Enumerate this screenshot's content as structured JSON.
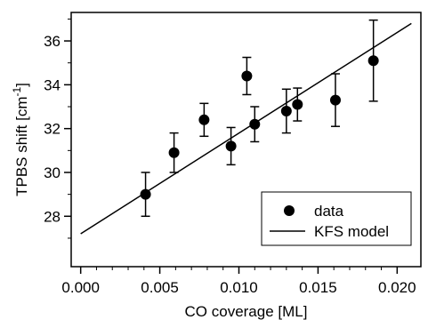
{
  "chart_data": {
    "type": "scatter",
    "title": "",
    "xlabel": "CO coverage [ML]",
    "ylabel_main": "TPBS shift [cm",
    "ylabel_sup": "-1",
    "ylabel_end": "]",
    "xlim": [
      -0.0006,
      0.0215
    ],
    "ylim": [
      25.7,
      37.3
    ],
    "x_ticks": [
      0.0,
      0.005,
      0.01,
      0.015,
      0.02
    ],
    "x_tick_labels": [
      "0.000",
      "0.005",
      "0.010",
      "0.015",
      "0.020"
    ],
    "y_ticks": [
      28,
      30,
      32,
      34,
      36
    ],
    "y_tick_labels": [
      "28",
      "30",
      "32",
      "34",
      "36"
    ],
    "grid": false,
    "legend_position": "bottom-right",
    "series": [
      {
        "name": "data",
        "kind": "scatter-with-errorbars",
        "x": [
          0.0041,
          0.0059,
          0.0078,
          0.0095,
          0.0105,
          0.011,
          0.013,
          0.0137,
          0.0161,
          0.0185
        ],
        "y": [
          29.0,
          30.9,
          32.4,
          31.2,
          34.4,
          32.2,
          32.8,
          33.1,
          33.3,
          35.1
        ],
        "yerr": [
          1.0,
          0.9,
          0.75,
          0.85,
          0.85,
          0.8,
          1.0,
          0.75,
          1.2,
          1.85
        ]
      },
      {
        "name": "KFS model",
        "kind": "line",
        "x": [
          0.0,
          0.0209
        ],
        "y": [
          27.2,
          36.8
        ]
      }
    ],
    "colors": {
      "data": "#000000",
      "line": "#000000",
      "axes": "#000000"
    }
  }
}
